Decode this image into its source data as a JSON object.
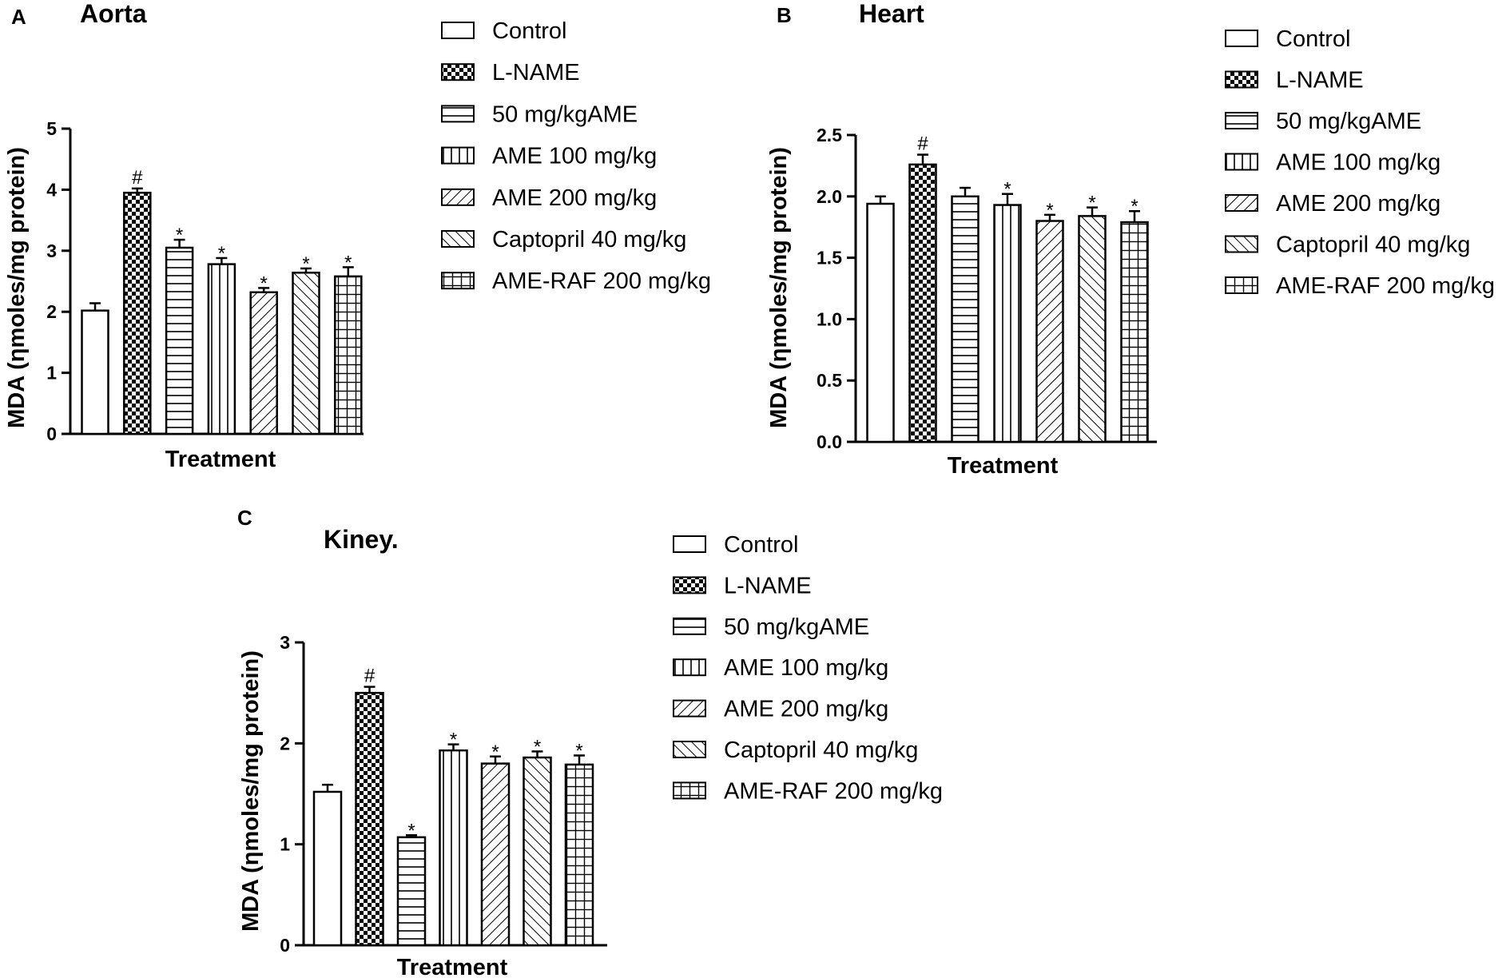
{
  "figure": {
    "legend_labels": [
      "Control",
      "L-NAME",
      "50 mg/kgAME",
      "AME 100 mg/kg",
      "AME 200 mg/kg",
      "Captopril 40 mg/kg",
      "AME-RAF 200 mg/kg"
    ],
    "patterns": [
      "blank",
      "checker",
      "hlines",
      "vlines",
      "diag-right",
      "diag-left",
      "grid"
    ]
  },
  "chart_data": [
    {
      "type": "bar",
      "panel": "A",
      "title": "Aorta",
      "xlabel": "Treatment",
      "ylabel": "MDA (ηmoles/mg protein)",
      "ylim": [
        0,
        5
      ],
      "yticks": [
        0,
        1,
        2,
        3,
        4,
        5
      ],
      "ytick_labels": [
        "0",
        "1",
        "2",
        "3",
        "4",
        "5"
      ],
      "categories": [
        "Control",
        "L-NAME",
        "50 mg/kgAME",
        "AME 100 mg/kg",
        "AME 200 mg/kg",
        "Captopril 40 mg/kg",
        "AME-RAF 200 mg/kg"
      ],
      "values": [
        2.02,
        3.95,
        3.05,
        2.78,
        2.32,
        2.64,
        2.58
      ],
      "errors": [
        0.12,
        0.07,
        0.13,
        0.1,
        0.07,
        0.07,
        0.15
      ],
      "marks": [
        "",
        "#",
        "*",
        "*",
        "*",
        "*",
        "*"
      ]
    },
    {
      "type": "bar",
      "panel": "B",
      "title": "Heart",
      "xlabel": "Treatment",
      "ylabel": "MDA (ηmoles/mg protein)",
      "ylim": [
        0,
        2.5
      ],
      "yticks": [
        0,
        0.5,
        1,
        1.5,
        2,
        2.5
      ],
      "ytick_labels": [
        "0.0",
        "0.5",
        "1.0",
        "1.5",
        "2.0",
        "2.5"
      ],
      "categories": [
        "Control",
        "L-NAME",
        "50 mg/kgAME",
        "AME 100 mg/kg",
        "AME 200 mg/kg",
        "Captopril 40 mg/kg",
        "AME-RAF 200 mg/kg"
      ],
      "values": [
        1.94,
        2.26,
        2.0,
        1.93,
        1.8,
        1.84,
        1.79
      ],
      "errors": [
        0.06,
        0.08,
        0.07,
        0.09,
        0.05,
        0.07,
        0.09
      ],
      "marks": [
        "",
        "#",
        "",
        "*",
        "*",
        "*",
        "*"
      ]
    },
    {
      "type": "bar",
      "panel": "C",
      "title": "Kiney.",
      "xlabel": "Treatment",
      "ylabel": "MDA (ηmoles/mg protein)",
      "ylim": [
        0,
        3
      ],
      "yticks": [
        0,
        1,
        2,
        3
      ],
      "ytick_labels": [
        "0",
        "1",
        "2",
        "3"
      ],
      "categories": [
        "Control",
        "L-NAME",
        "50 mg/kgAME",
        "AME 100 mg/kg",
        "AME 200 mg/kg",
        "Captopril 40 mg/kg",
        "AME-RAF 200 mg/kg"
      ],
      "values": [
        1.52,
        2.5,
        1.07,
        1.93,
        1.8,
        1.86,
        1.79
      ],
      "errors": [
        0.07,
        0.06,
        0.02,
        0.06,
        0.07,
        0.06,
        0.09
      ],
      "marks": [
        "",
        "#",
        "*",
        "*",
        "*",
        "*",
        "*"
      ]
    }
  ]
}
